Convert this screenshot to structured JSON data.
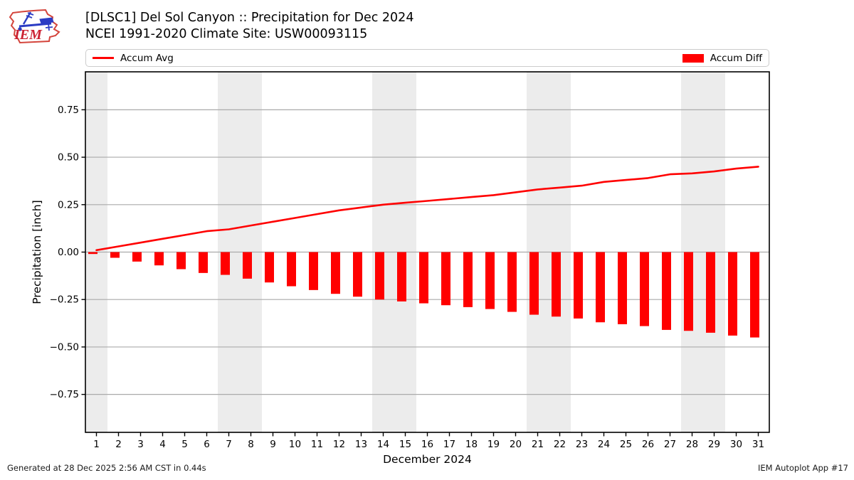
{
  "header": {
    "title_line1": "[DLSC1] Del Sol Canyon :: Precipitation for Dec 2024",
    "title_line2": "NCEI 1991-2020 Climate Site: USW00093115",
    "logo_text": "IEM"
  },
  "legend": {
    "avg_label": "Accum Avg",
    "diff_label": "Accum Diff"
  },
  "footer": {
    "generated": "Generated at 28 Dec 2025 2:56 AM CST in 0.44s",
    "app": "IEM Autoplot App #17"
  },
  "colors": {
    "series_red": "#ff0000",
    "grid": "#aaaaaa",
    "weekend_band": "#ececec",
    "axis_border": "#000000",
    "legend_border": "#cccccc",
    "logo_red": "#cc2233",
    "logo_blue": "#2b3cc4"
  },
  "chart_data": {
    "type": "bar",
    "x": [
      1,
      2,
      3,
      4,
      5,
      6,
      7,
      8,
      9,
      10,
      11,
      12,
      13,
      14,
      15,
      16,
      17,
      18,
      19,
      20,
      21,
      22,
      23,
      24,
      25,
      26,
      27,
      28,
      29,
      30,
      31
    ],
    "series": [
      {
        "name": "Accum Avg",
        "type": "line",
        "color": "#ff0000",
        "values": [
          0.01,
          0.03,
          0.05,
          0.07,
          0.09,
          0.11,
          0.12,
          0.14,
          0.16,
          0.18,
          0.2,
          0.22,
          0.235,
          0.25,
          0.26,
          0.27,
          0.28,
          0.29,
          0.3,
          0.315,
          0.33,
          0.34,
          0.35,
          0.37,
          0.38,
          0.39,
          0.41,
          0.415,
          0.425,
          0.44,
          0.45
        ]
      },
      {
        "name": "Accum Diff",
        "type": "bar",
        "color": "#ff0000",
        "values": [
          -0.01,
          -0.03,
          -0.05,
          -0.07,
          -0.09,
          -0.11,
          -0.12,
          -0.14,
          -0.16,
          -0.18,
          -0.2,
          -0.22,
          -0.235,
          -0.25,
          -0.26,
          -0.27,
          -0.28,
          -0.29,
          -0.3,
          -0.315,
          -0.33,
          -0.34,
          -0.35,
          -0.37,
          -0.38,
          -0.39,
          -0.41,
          -0.415,
          -0.425,
          -0.44,
          -0.45
        ]
      }
    ],
    "title": "[DLSC1] Del Sol Canyon :: Precipitation for Dec 2024",
    "xlabel": "December 2024",
    "ylabel": "Precipitation [inch]",
    "ylim": [
      -0.95,
      0.95
    ],
    "y_ticks": [
      0.75,
      0.5,
      0.25,
      0.0,
      -0.25,
      -0.5,
      -0.75
    ],
    "grid": true,
    "legend_position": "top",
    "weekend_bands_days": [
      [
        1,
        1
      ],
      [
        7,
        8
      ],
      [
        14,
        15
      ],
      [
        21,
        22
      ],
      [
        28,
        29
      ]
    ]
  }
}
